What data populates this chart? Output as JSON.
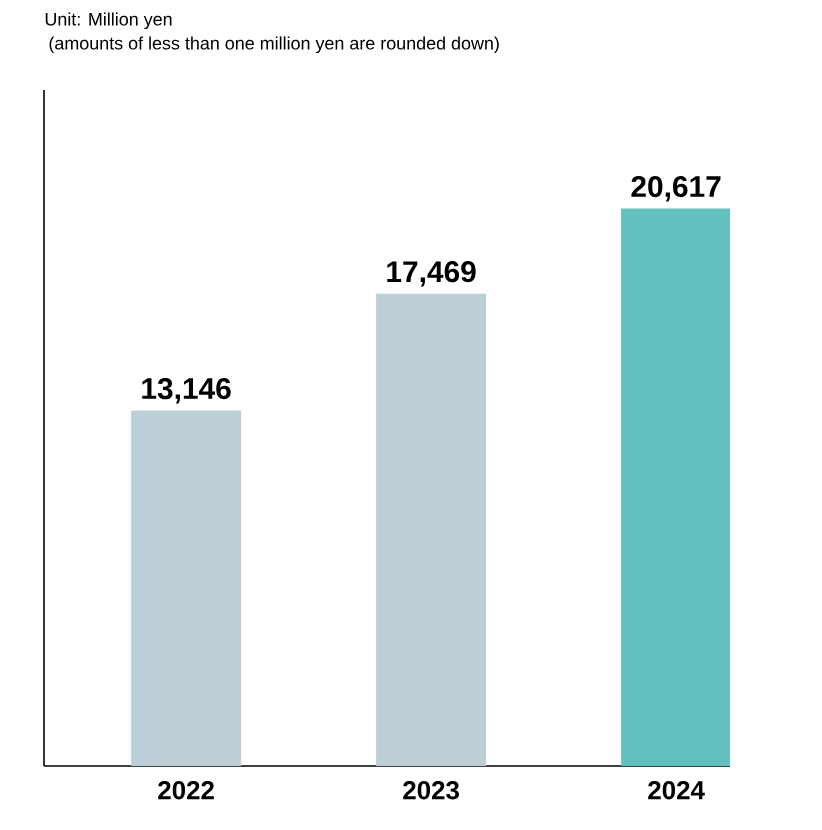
{
  "chart_data": {
    "type": "bar",
    "title": "Unit: Million yen",
    "subtitle": "(amounts of less than one million yen are rounded down)",
    "categories": [
      "2022",
      "2023",
      "2024"
    ],
    "values": [
      13146,
      17469,
      20617
    ],
    "value_labels": [
      "13,146",
      "17,469",
      "20,617"
    ],
    "colors": [
      "#bdcfd6",
      "#bdcfd6",
      "#62c1bf"
    ],
    "ylim": [
      0,
      25000
    ],
    "tick_labels": "x"
  }
}
